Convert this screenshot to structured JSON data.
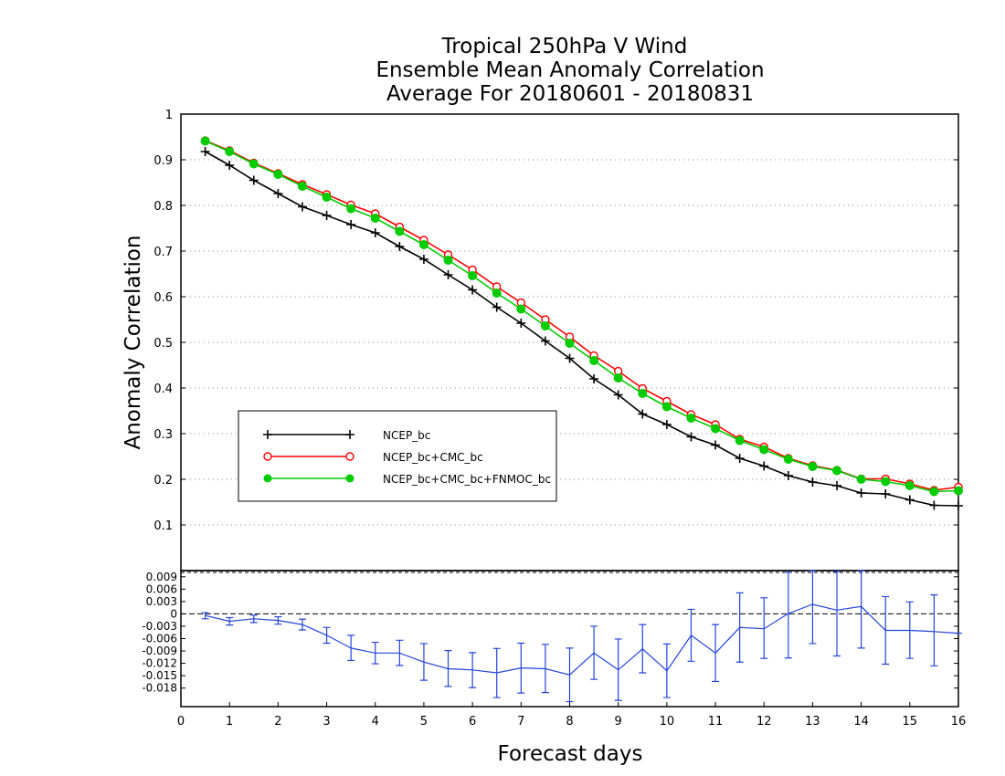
{
  "chart_data": [
    {
      "type": "line",
      "title": "Tropical 250hPa V Wind",
      "subtitle_1": "Ensemble Mean Anomaly Correlation",
      "subtitle_2": "Average For 20180601 - 20180831",
      "ylabel": "Anomaly Correlation",
      "xlabel": "Forecast days",
      "xlim": [
        0,
        16
      ],
      "ylim": [
        0,
        1
      ],
      "x_ticks": [
        "0",
        "1",
        "2",
        "3",
        "4",
        "5",
        "6",
        "7",
        "8",
        "9",
        "10",
        "11",
        "12",
        "13",
        "14",
        "15",
        "16"
      ],
      "y_ticks": [
        "0.1",
        "0.2",
        "0.3",
        "0.4",
        "0.5",
        "0.6",
        "0.7",
        "0.8",
        "0.9",
        "1"
      ],
      "grid": true,
      "legend_position": "center-left",
      "x": [
        0.5,
        1,
        1.5,
        2,
        2.5,
        3,
        3.5,
        4,
        4.5,
        5,
        5.5,
        6,
        6.5,
        7,
        7.5,
        8,
        8.5,
        9,
        9.5,
        10,
        10.5,
        11,
        11.5,
        12,
        12.5,
        13,
        13.5,
        14,
        14.5,
        15,
        15.5,
        16
      ],
      "series": [
        {
          "name": "NCEP_bc",
          "color": "#000000",
          "marker": "plus",
          "values": [
            0.918,
            0.888,
            0.855,
            0.826,
            0.797,
            0.778,
            0.758,
            0.74,
            0.71,
            0.682,
            0.648,
            0.615,
            0.577,
            0.542,
            0.503,
            0.465,
            0.42,
            0.385,
            0.343,
            0.32,
            0.293,
            0.275,
            0.246,
            0.229,
            0.208,
            0.194,
            0.186,
            0.17,
            0.168,
            0.155,
            0.143,
            0.142
          ]
        },
        {
          "name": "NCEP_bc+CMC_bc",
          "color": "#ff0000",
          "marker": "open-circle",
          "values": [
            0.942,
            0.92,
            0.893,
            0.87,
            0.846,
            0.824,
            0.801,
            0.782,
            0.753,
            0.724,
            0.692,
            0.659,
            0.622,
            0.587,
            0.55,
            0.512,
            0.471,
            0.437,
            0.399,
            0.371,
            0.342,
            0.32,
            0.288,
            0.271,
            0.246,
            0.23,
            0.22,
            0.201,
            0.201,
            0.19,
            0.176,
            0.183
          ]
        },
        {
          "name": "NCEP_bc+CMC_bc+FNMOC_bc",
          "color": "#00cc00",
          "marker": "filled-circle",
          "values": [
            0.941,
            0.918,
            0.891,
            0.868,
            0.842,
            0.818,
            0.793,
            0.772,
            0.743,
            0.714,
            0.68,
            0.646,
            0.608,
            0.573,
            0.536,
            0.498,
            0.46,
            0.422,
            0.388,
            0.359,
            0.334,
            0.311,
            0.285,
            0.265,
            0.244,
            0.228,
            0.219,
            0.2,
            0.195,
            0.186,
            0.173,
            0.175
          ]
        }
      ]
    },
    {
      "type": "line",
      "title": "",
      "xlim": [
        0,
        16
      ],
      "ylim": [
        -0.0225,
        0.0105
      ],
      "y_ticks": [
        "0.009",
        "0.006",
        "0.003",
        "0",
        "-0.003",
        "-0.006",
        "-0.009",
        "-0.012",
        "-0.015",
        "-0.018"
      ],
      "x": [
        0.5,
        1,
        1.5,
        2,
        2.5,
        3,
        3.5,
        4,
        4.5,
        5,
        5.5,
        6,
        6.5,
        7,
        7.5,
        8,
        8.5,
        9,
        9.5,
        10,
        10.5,
        11,
        11.5,
        12,
        12.5,
        13,
        13.5,
        14,
        14.5,
        15,
        15.5,
        16
      ],
      "series": [
        {
          "name": "",
          "color": "#2244dd",
          "marker": "error-bar",
          "values": [
            -0.0004,
            -0.0018,
            -0.0012,
            -0.0016,
            -0.0026,
            -0.0052,
            -0.0083,
            -0.0095,
            -0.0095,
            -0.0117,
            -0.0133,
            -0.0136,
            -0.0143,
            -0.0131,
            -0.0133,
            -0.0148,
            -0.0095,
            -0.0136,
            -0.0085,
            -0.0138,
            -0.0052,
            -0.0095,
            -0.0033,
            -0.0036,
            0.0001,
            0.0023,
            0.0009,
            0.0018,
            -0.004,
            -0.004,
            -0.0043,
            -0.0047
          ],
          "error_low": [
            -0.0012,
            -0.0027,
            -0.0021,
            -0.0025,
            -0.0039,
            -0.0071,
            -0.0113,
            -0.0121,
            -0.0125,
            -0.0161,
            -0.0176,
            -0.0179,
            -0.0203,
            -0.0192,
            -0.0191,
            -0.0213,
            -0.0159,
            -0.021,
            -0.0143,
            -0.0203,
            -0.0115,
            -0.0164,
            -0.0117,
            -0.0108,
            -0.0107,
            -0.0072,
            -0.0102,
            -0.0083,
            -0.0122,
            -0.0108,
            -0.0126,
            -0.0047
          ],
          "error_high": [
            0.0003,
            -0.0009,
            -0.0003,
            -0.0007,
            -0.0013,
            -0.0033,
            -0.0052,
            -0.0069,
            -0.0064,
            -0.0072,
            -0.0089,
            -0.0094,
            -0.0084,
            -0.0071,
            -0.0074,
            -0.0083,
            -0.003,
            -0.0061,
            -0.0026,
            -0.0073,
            0.0011,
            -0.0026,
            0.0051,
            0.0039,
            0.0101,
            0.0105,
            0.0103,
            0.0107,
            0.0042,
            0.0029,
            0.0046,
            -0.0047
          ]
        }
      ]
    }
  ]
}
